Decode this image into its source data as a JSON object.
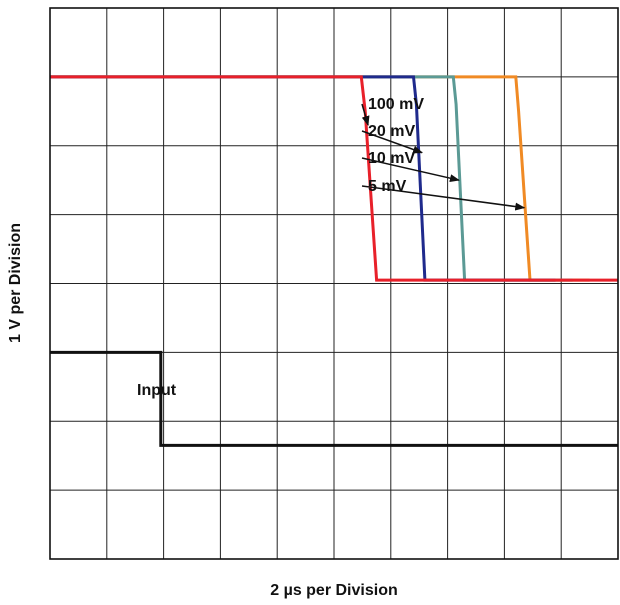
{
  "chart_data": {
    "type": "line",
    "title": "",
    "xlabel": "2 µs per Division",
    "ylabel": "1 V per Division",
    "grid": true,
    "x_divisions": 10,
    "y_divisions": 8,
    "xlim": [
      0,
      10
    ],
    "ylim": [
      0,
      8
    ],
    "series": [
      {
        "name": "100 mV",
        "color": "#e8202a",
        "points": [
          [
            0,
            7.0
          ],
          [
            5.48,
            7.0
          ],
          [
            5.55,
            6.5
          ],
          [
            5.75,
            4.05
          ],
          [
            10,
            4.05
          ]
        ]
      },
      {
        "name": "20 mV",
        "color": "#1f2a8c",
        "points": [
          [
            0,
            7.0
          ],
          [
            6.4,
            7.0
          ],
          [
            6.45,
            6.6
          ],
          [
            6.6,
            4.05
          ],
          [
            8.9,
            4.05
          ]
        ]
      },
      {
        "name": "10 mV",
        "color": "#5b9a95",
        "points": [
          [
            0,
            7.0
          ],
          [
            7.1,
            7.0
          ],
          [
            7.15,
            6.6
          ],
          [
            7.3,
            4.05
          ],
          [
            9.2,
            4.05
          ]
        ]
      },
      {
        "name": "5 mV",
        "color": "#f08a24",
        "points": [
          [
            0,
            7.0
          ],
          [
            8.2,
            7.0
          ],
          [
            8.25,
            6.5
          ],
          [
            8.45,
            4.05
          ],
          [
            9.5,
            4.05
          ]
        ]
      },
      {
        "name": "Input",
        "color": "#111111",
        "points": [
          [
            0,
            3.0
          ],
          [
            1.95,
            3.0
          ],
          [
            1.95,
            1.65
          ],
          [
            10,
            1.65
          ]
        ]
      }
    ],
    "annotations": [
      {
        "text": "100 mV",
        "series": "100 mV",
        "target": [
          5.6,
          6.3
        ]
      },
      {
        "text": "20 mV",
        "series": "20 mV",
        "target": [
          6.55,
          5.9
        ]
      },
      {
        "text": "10 mV",
        "series": "10 mV",
        "target": [
          7.2,
          5.5
        ]
      },
      {
        "text": "5 mV",
        "series": "5 mV",
        "target": [
          8.35,
          5.1
        ]
      },
      {
        "text": "Input",
        "series": "Input"
      }
    ]
  }
}
